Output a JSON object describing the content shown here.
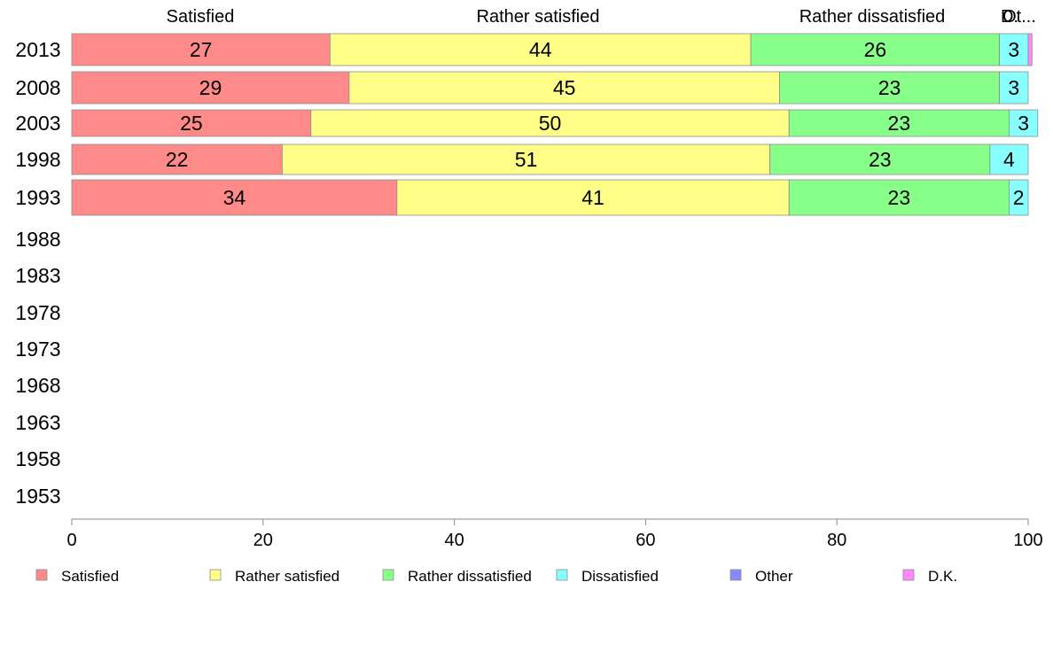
{
  "chart_data": {
    "type": "bar",
    "orientation": "horizontal",
    "stacked": true,
    "categories": [
      "2013",
      "2008",
      "2003",
      "1998",
      "1993",
      "1988",
      "1983",
      "1978",
      "1973",
      "1968",
      "1963",
      "1958",
      "1953"
    ],
    "series": [
      {
        "name": "Satisfied",
        "color": "#ff8a8a",
        "values": [
          27,
          29,
          25,
          22,
          34,
          null,
          null,
          null,
          null,
          null,
          null,
          null,
          null
        ]
      },
      {
        "name": "Rather satisfied",
        "color": "#ffff88",
        "values": [
          44,
          45,
          50,
          51,
          41,
          null,
          null,
          null,
          null,
          null,
          null,
          null,
          null
        ]
      },
      {
        "name": "Rather dissatisfied",
        "color": "#88ff88",
        "values": [
          26,
          23,
          23,
          23,
          23,
          null,
          null,
          null,
          null,
          null,
          null,
          null,
          null
        ]
      },
      {
        "name": "Dissatisfied",
        "color": "#88ffff",
        "values": [
          3,
          3,
          3,
          4,
          2,
          null,
          null,
          null,
          null,
          null,
          null,
          null,
          null
        ]
      },
      {
        "name": "Other",
        "color": "#8888ff",
        "values": [
          0,
          0,
          0,
          0,
          0,
          null,
          null,
          null,
          null,
          null,
          null,
          null,
          null
        ]
      },
      {
        "name": "D.K.",
        "color": "#ff88ff",
        "values": [
          0.4,
          0,
          0,
          0,
          0,
          null,
          null,
          null,
          null,
          null,
          null,
          null,
          null
        ]
      }
    ],
    "top_labels": [
      "Satisfied",
      "Rather satisfied",
      "Rather dissatisfied",
      "D.",
      "Ot..."
    ],
    "xlim": [
      0,
      100
    ],
    "xticks": [
      "0",
      "20",
      "40",
      "60",
      "80",
      "100"
    ],
    "xlabel": "",
    "ylabel": "",
    "title": "",
    "grid": false,
    "legend_position": "bottom"
  }
}
